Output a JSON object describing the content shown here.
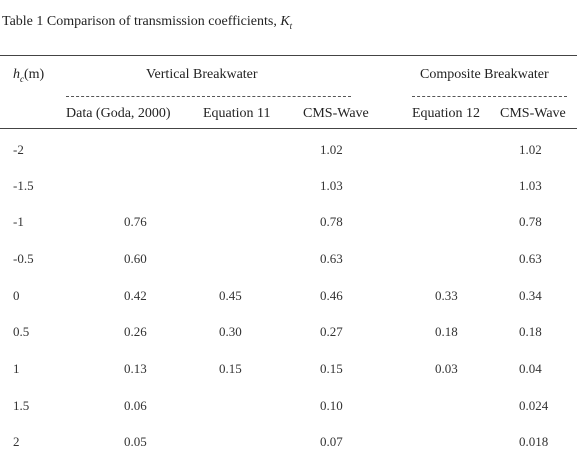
{
  "caption": {
    "prefix": "Table 1 Comparison  of transmission  coefficients, ",
    "symbol": "K",
    "subscript": "t"
  },
  "header": {
    "hc_symbol": "h",
    "hc_sub": "c",
    "hc_unit": "(m)",
    "group_vertical": "Vertical Breakwater",
    "group_composite": "Composite Breakwater",
    "col_data": "Data (Goda, 2000)",
    "col_eq11": "Equation 11",
    "col_cms_v": "CMS-Wave",
    "col_eq12": "Equation 12",
    "col_cms_c": "CMS-Wave"
  },
  "rows": [
    {
      "hc": "-2",
      "data": "",
      "eq11": "",
      "cms_v": "1.02",
      "eq12": "",
      "cms_c": "1.02"
    },
    {
      "hc": "-1.5",
      "data": "",
      "eq11": "",
      "cms_v": "1.03",
      "eq12": "",
      "cms_c": "1.03"
    },
    {
      "hc": "-1",
      "data": "0.76",
      "eq11": "",
      "cms_v": "0.78",
      "eq12": "",
      "cms_c": "0.78"
    },
    {
      "hc": "-0.5",
      "data": "0.60",
      "eq11": "",
      "cms_v": "0.63",
      "eq12": "",
      "cms_c": "0.63"
    },
    {
      "hc": "0",
      "data": "0.42",
      "eq11": "0.45",
      "cms_v": "0.46",
      "eq12": "0.33",
      "cms_c": "0.34"
    },
    {
      "hc": "0.5",
      "data": "0.26",
      "eq11": "0.30",
      "cms_v": "0.27",
      "eq12": "0.18",
      "cms_c": "0.18"
    },
    {
      "hc": "1",
      "data": "0.13",
      "eq11": "0.15",
      "cms_v": "0.15",
      "eq12": "0.03",
      "cms_c": "0.04"
    },
    {
      "hc": "1.5",
      "data": "0.06",
      "eq11": "",
      "cms_v": "0.10",
      "eq12": "",
      "cms_c": "0.024"
    },
    {
      "hc": "2",
      "data": "0.05",
      "eq11": "",
      "cms_v": "0.07",
      "eq12": "",
      "cms_c": "0.018"
    }
  ]
}
